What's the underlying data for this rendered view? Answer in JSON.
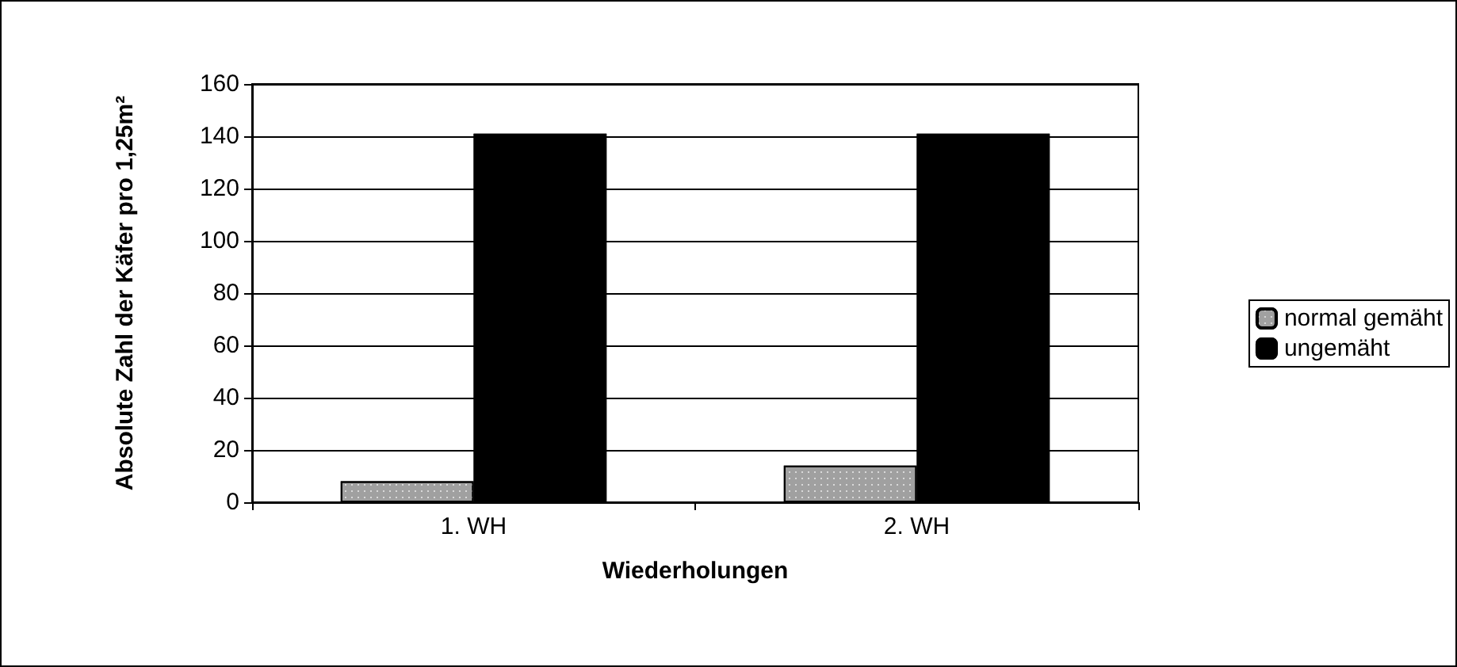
{
  "chart_data": {
    "type": "bar",
    "xlabel": "Wiederholungen",
    "ylabel": "Absolute Zahl der Käfer pro 1,25m²",
    "categories": [
      "1. WH",
      "2. WH"
    ],
    "series": [
      {
        "name": "normal gemäht",
        "color": "#a0a0a0",
        "values": [
          8,
          14
        ]
      },
      {
        "name": "ungemäht",
        "color": "#000000",
        "values": [
          141,
          141
        ]
      }
    ],
    "ylim": [
      0,
      160
    ],
    "yticks": [
      0,
      20,
      40,
      60,
      80,
      100,
      120,
      140,
      160
    ],
    "grid": "y",
    "legend": "right"
  }
}
